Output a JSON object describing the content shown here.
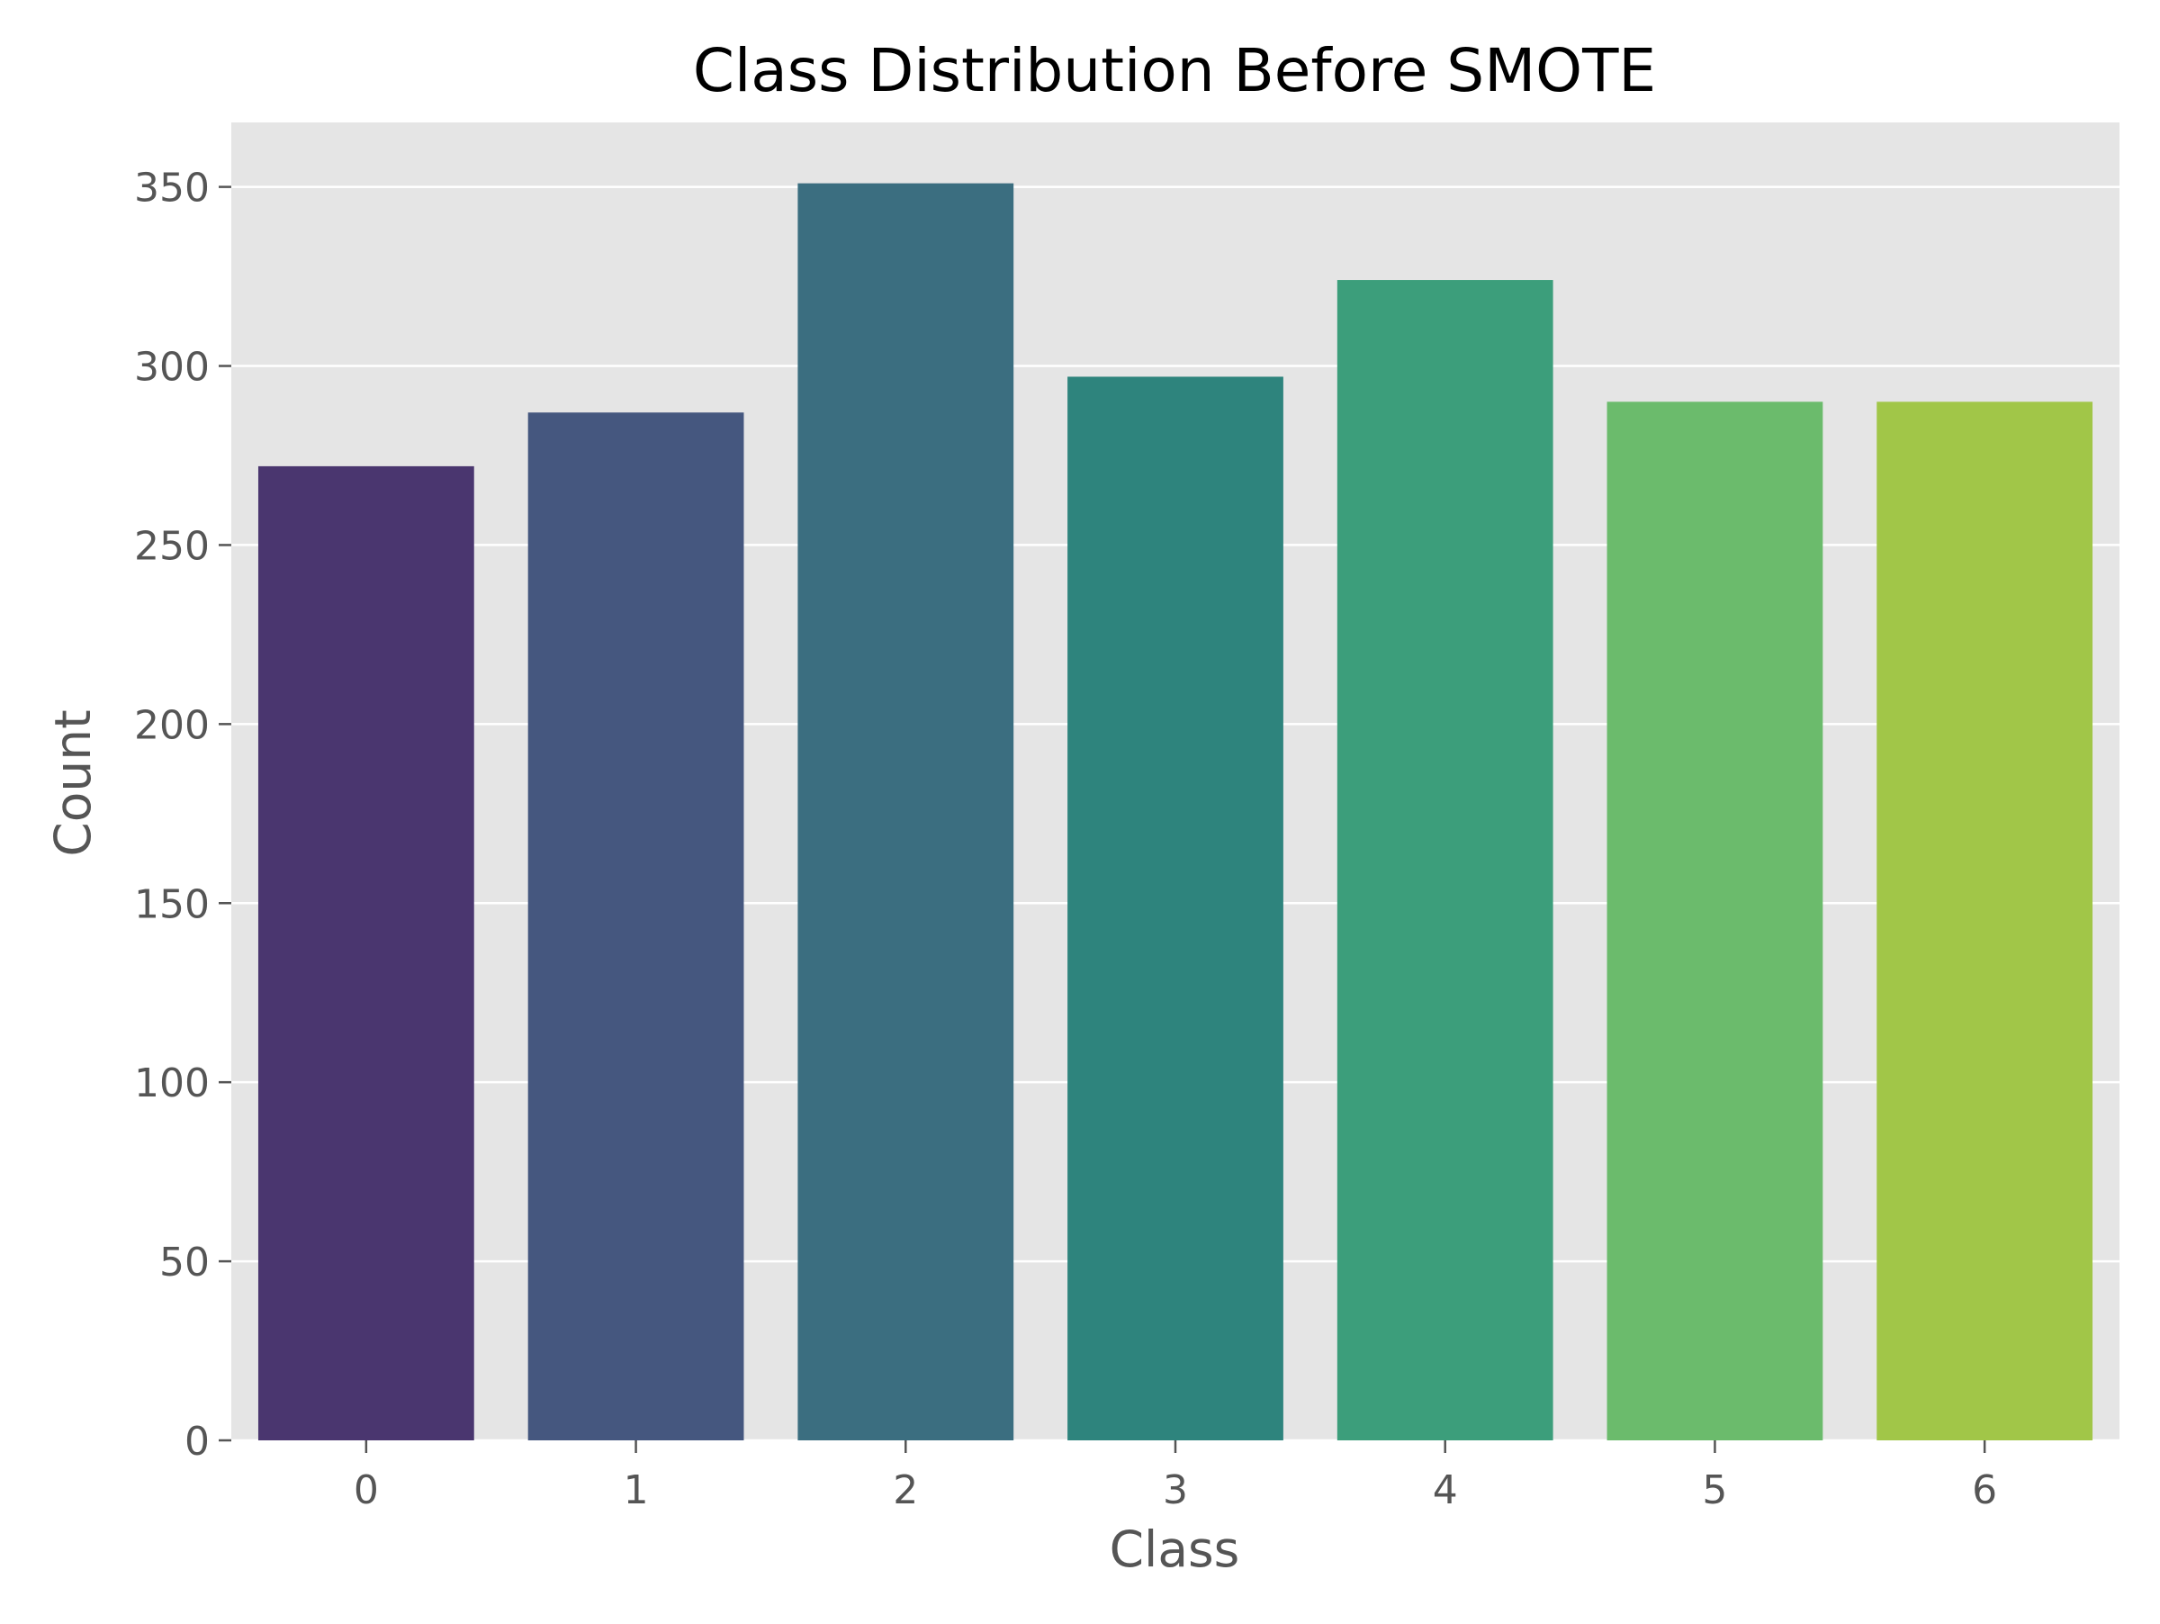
{
  "chart_data": {
    "type": "bar",
    "title": "Class Distribution Before SMOTE",
    "xlabel": "Class",
    "ylabel": "Count",
    "categories": [
      "0",
      "1",
      "2",
      "3",
      "4",
      "5",
      "6"
    ],
    "values": [
      272,
      287,
      351,
      297,
      324,
      290,
      290
    ],
    "ylim": [
      0,
      368
    ],
    "yticks": [
      0,
      50,
      100,
      150,
      200,
      250,
      300,
      350
    ],
    "grid": true,
    "legend": "none",
    "colors": {
      "plot_background": "#e5e5e5",
      "grid": "#ffffff",
      "tick_label": "#555555",
      "title": "#000000",
      "bars": [
        "#4a366f",
        "#45577f",
        "#3b6e80",
        "#2e847d",
        "#3c9e7b",
        "#6bbb6c",
        "#a1c648"
      ]
    }
  }
}
